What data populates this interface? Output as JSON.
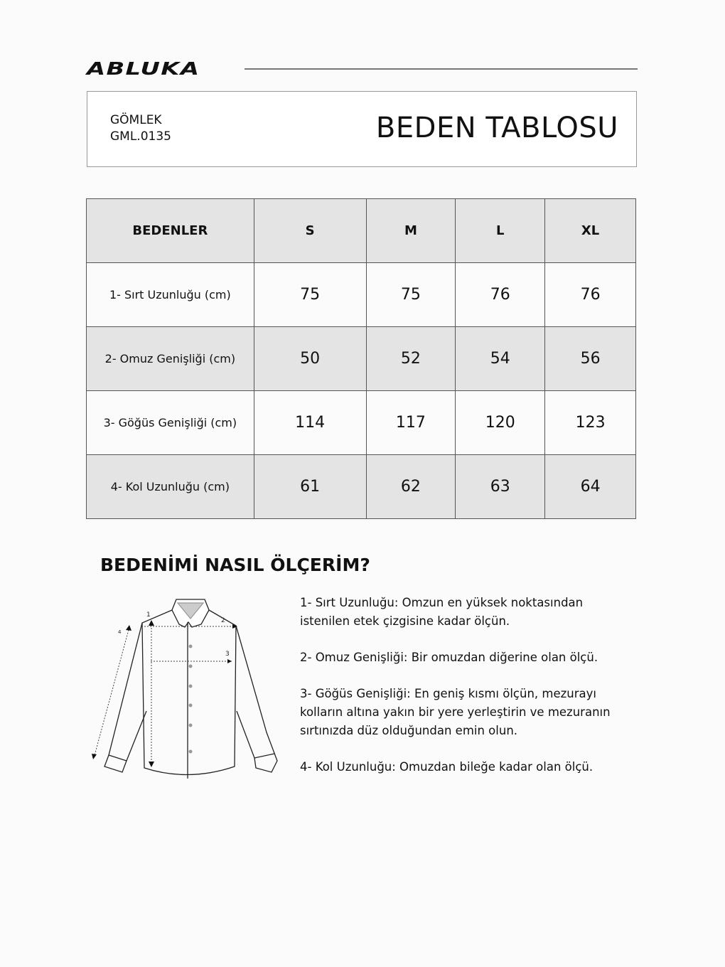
{
  "brand": "ABLUKA",
  "header": {
    "product_type": "GÖMLEK",
    "product_code": "GML.0135",
    "title": "BEDEN TABLOSU"
  },
  "table": {
    "columns": [
      "BEDENLER",
      "S",
      "M",
      "L",
      "XL"
    ],
    "rows": [
      {
        "label": "1- Sırt Uzunluğu (cm)",
        "values": [
          "75",
          "75",
          "76",
          "76"
        ]
      },
      {
        "label": "2- Omuz Genişliği (cm)",
        "values": [
          "50",
          "52",
          "54",
          "56"
        ]
      },
      {
        "label": "3- Göğüs Genişliği (cm)",
        "values": [
          "114",
          "117",
          "120",
          "123"
        ]
      },
      {
        "label": "4- Kol Uzunluğu (cm)",
        "values": [
          "61",
          "62",
          "63",
          "64"
        ]
      }
    ]
  },
  "howto": {
    "title": "BEDENİMİ NASIL ÖLÇERİM?",
    "diagram_labels": [
      "1",
      "2",
      "3",
      "4"
    ],
    "instructions": [
      "1- Sırt Uzunluğu: Omzun en yüksek noktasından istenilen etek çizgisine kadar ölçün.",
      "2- Omuz Genişliği: Bir omuzdan diğerine olan ölçü.",
      "3- Göğüs Genişliği: En geniş kısmı ölçün, mezurayı kolların altına yakın bir yere yerleştirin ve mezuranın sırtınızda düz olduğundan emin olun.",
      "4- Kol Uzunluğu: Omuzdan bileğe kadar olan ölçü."
    ]
  }
}
